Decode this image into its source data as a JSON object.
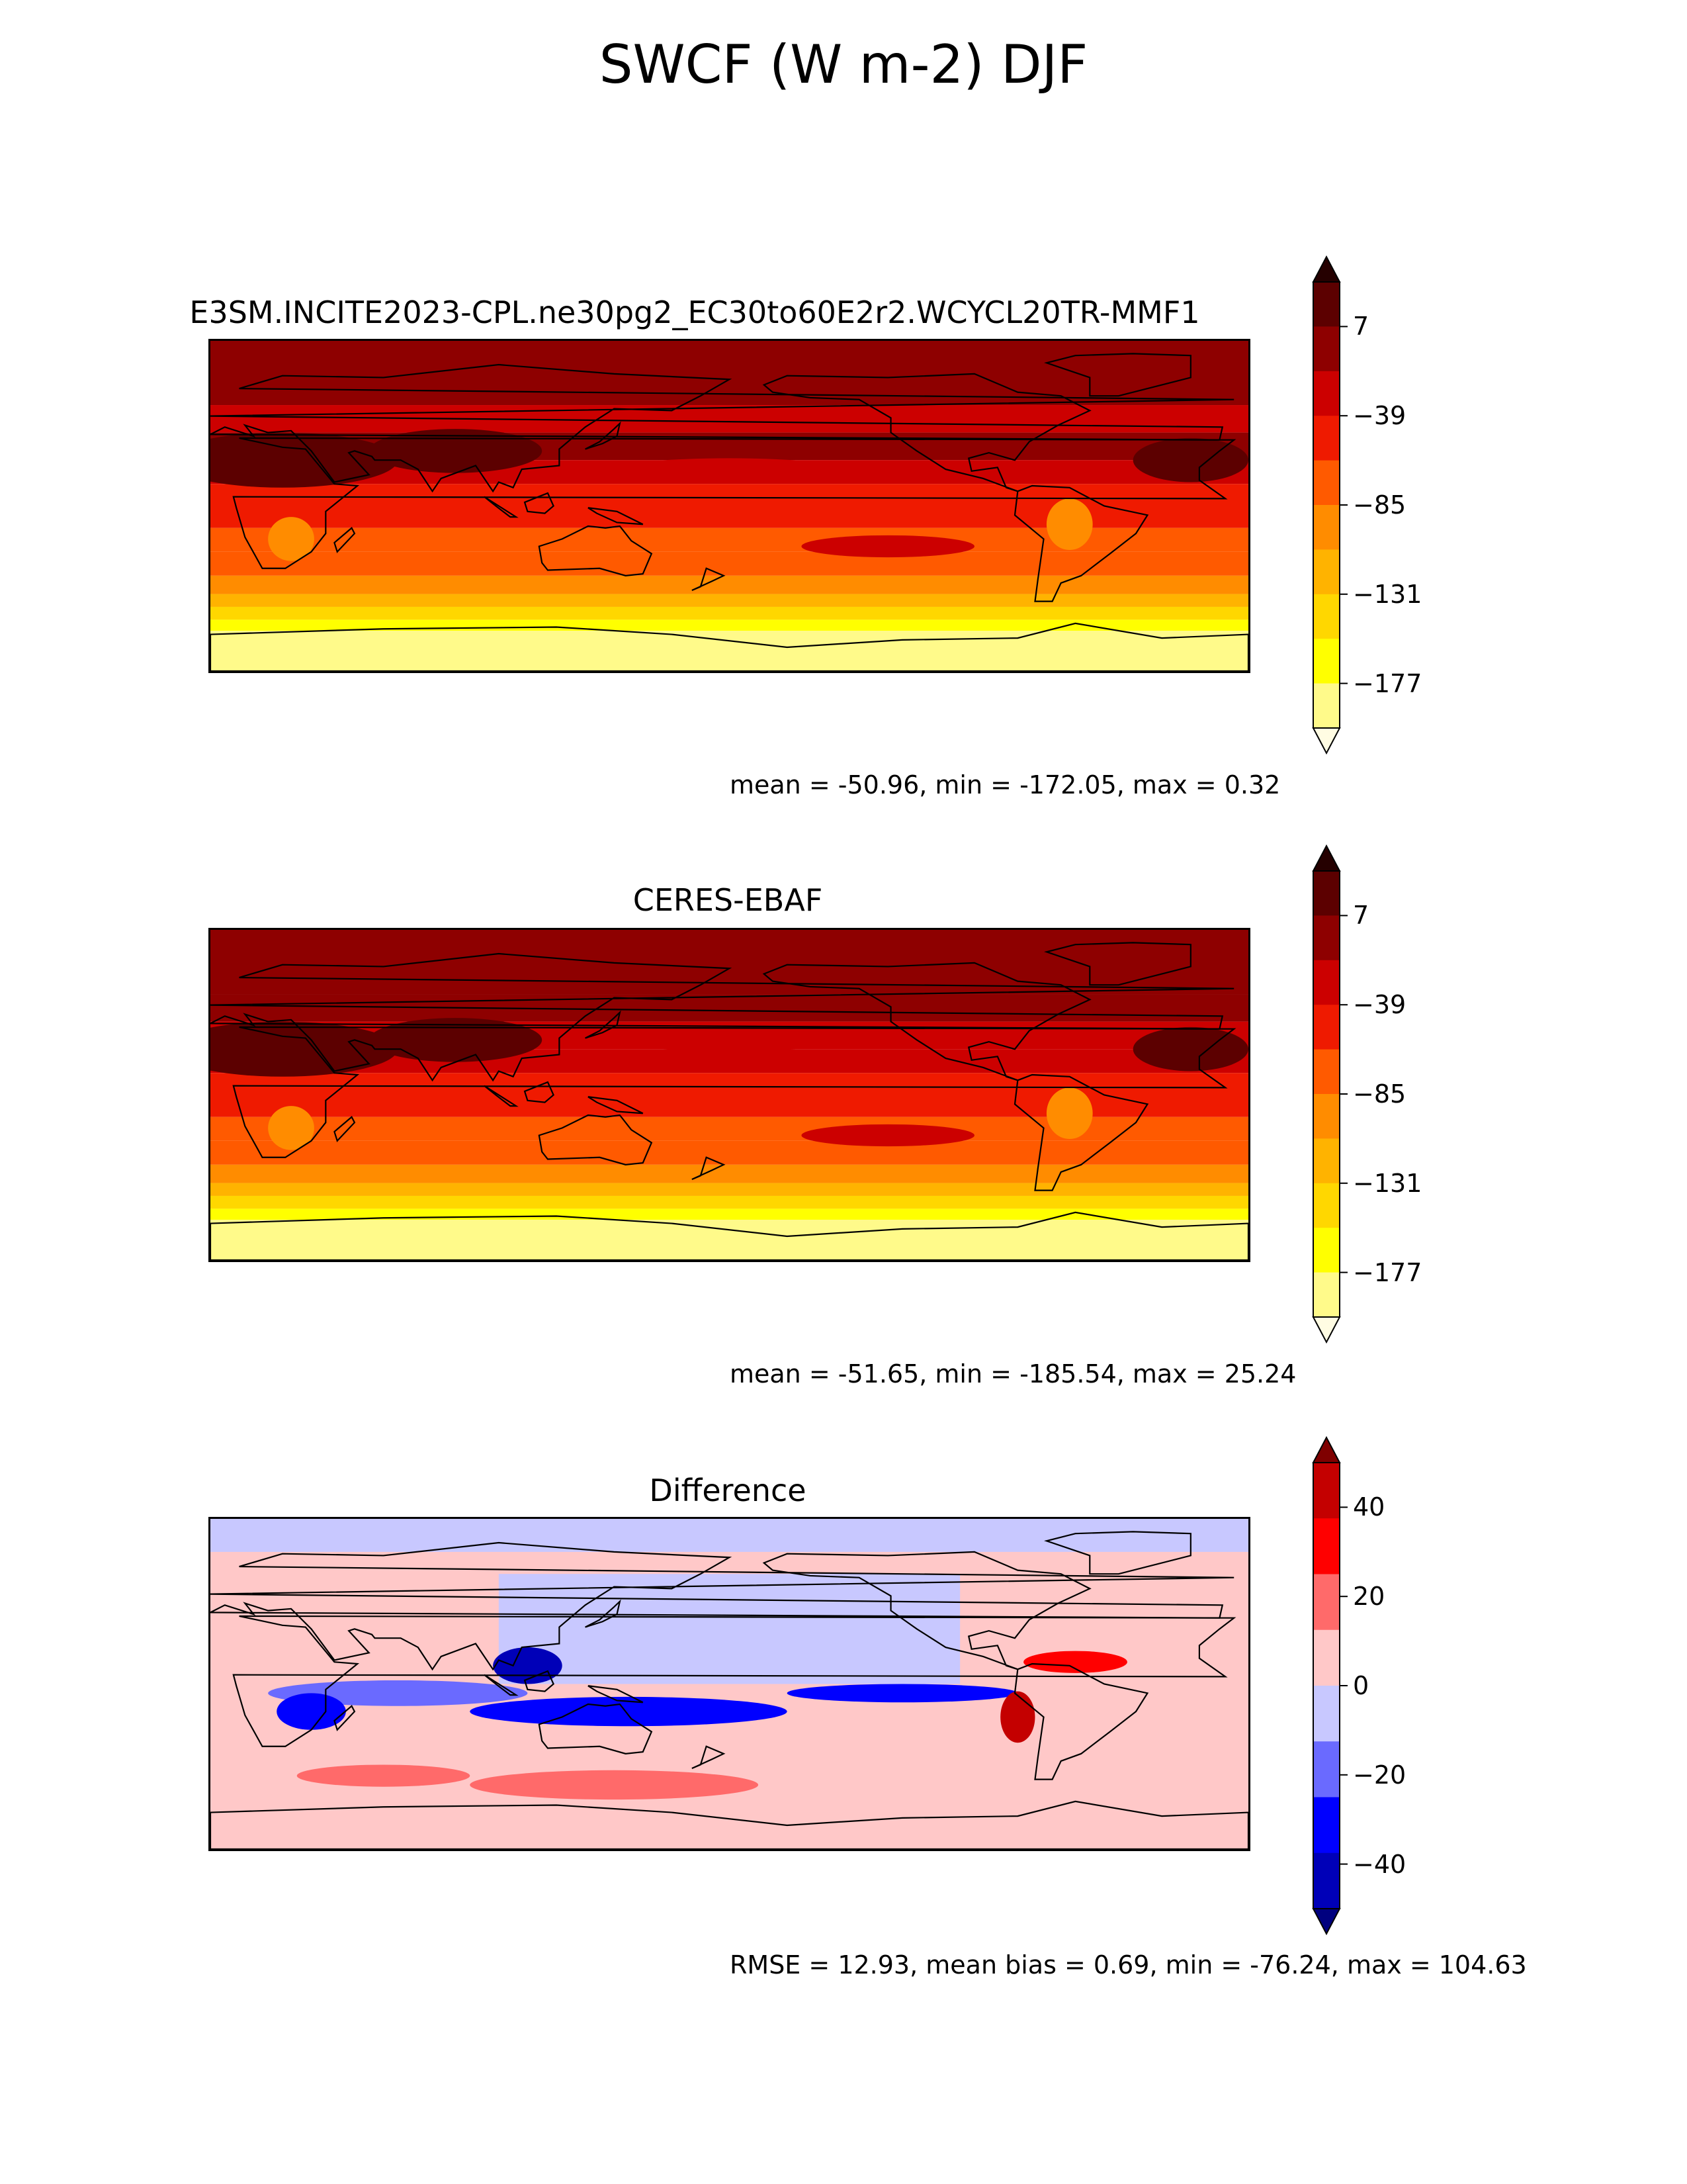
{
  "figure": {
    "title": "SWCF (W m-2) DJF"
  },
  "colors": {
    "sequential": [
      "#fffce3",
      "#fffa8a",
      "#ffff00",
      "#ffd700",
      "#ffb300",
      "#ff8c00",
      "#ff5a00",
      "#ef1a00",
      "#cc0000",
      "#8e0000",
      "#5c0000",
      "#250000"
    ],
    "diverging": [
      "#00007f",
      "#0000b8",
      "#0000ff",
      "#6a6aff",
      "#c8c8ff",
      "#ffc8c8",
      "#ff6a6a",
      "#ff0000",
      "#c40000",
      "#7f0000"
    ],
    "coastline": "#000000"
  },
  "chart_data": [
    {
      "type": "heatmap",
      "title": "E3SM.INCITE2023-CPL.ne30pg2_EC30to60E2r2.WCYCL20TR-MMF1",
      "stats": "mean = -50.96, min = -172.05, max = 0.32",
      "colorbar": {
        "ticks": [
          "7",
          "−39",
          "−85",
          "−131",
          "−177"
        ],
        "tick_values": [
          7,
          -39,
          -85,
          -131,
          -177
        ],
        "range": [
          -200,
          30
        ],
        "extend": "both"
      },
      "map": {
        "projection": "PlateCarree",
        "lon_range": [
          0,
          360
        ],
        "lat_range": [
          -90,
          90
        ]
      }
    },
    {
      "type": "heatmap",
      "title": "CERES-EBAF",
      "stats": "mean = -51.65, min = -185.54, max = 25.24",
      "colorbar": {
        "ticks": [
          "7",
          "−39",
          "−85",
          "−131",
          "−177"
        ],
        "tick_values": [
          7,
          -39,
          -85,
          -131,
          -177
        ],
        "range": [
          -200,
          30
        ],
        "extend": "both"
      },
      "map": {
        "projection": "PlateCarree",
        "lon_range": [
          0,
          360
        ],
        "lat_range": [
          -90,
          90
        ]
      }
    },
    {
      "type": "heatmap",
      "title": "Difference",
      "stats": "RMSE = 12.93, mean bias = 0.69, min = -76.24, max = 104.63",
      "colorbar": {
        "ticks": [
          "40",
          "20",
          "0",
          "−20",
          "−40"
        ],
        "tick_values": [
          40,
          20,
          0,
          -20,
          -40
        ],
        "range": [
          -50,
          50
        ],
        "extend": "both"
      },
      "map": {
        "projection": "PlateCarree",
        "lon_range": [
          0,
          360
        ],
        "lat_range": [
          -90,
          90
        ]
      }
    }
  ]
}
